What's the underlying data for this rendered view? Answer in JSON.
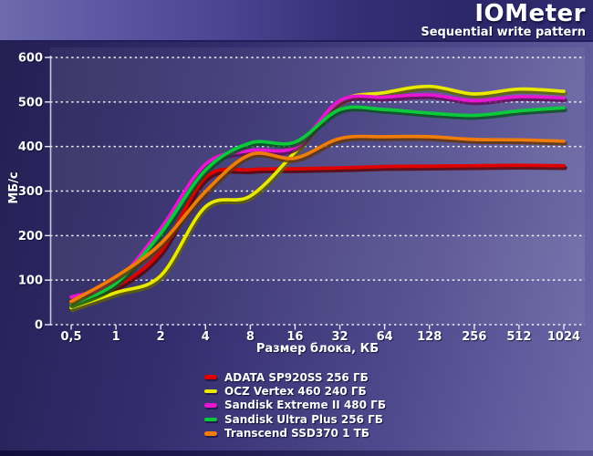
{
  "header": {
    "title": "IOMeter",
    "subtitle": "Sequential write pattern"
  },
  "chart_data": {
    "type": "line",
    "title": "IOMeter",
    "subtitle": "Sequential write pattern",
    "xlabel": "Размер блока, КБ",
    "ylabel": "МБ/с",
    "x_categories": [
      "0,5",
      "1",
      "2",
      "4",
      "8",
      "16",
      "32",
      "64",
      "128",
      "256",
      "512",
      "1024"
    ],
    "y_ticks": [
      "0",
      "100",
      "200",
      "300",
      "400",
      "500",
      "600"
    ],
    "ylim": [
      0,
      600
    ],
    "grid": "horizontal-dotted-white",
    "legend_position": "bottom-left",
    "series": [
      {
        "name": "ADATA SP920SS 256 ГБ",
        "color": "#e00000",
        "values": [
          49,
          85,
          164,
          330,
          348,
          350,
          352,
          355,
          356,
          357,
          358,
          357
        ]
      },
      {
        "name": "OCZ Vertex 460 240 ГБ",
        "color": "#e8e800",
        "values": [
          38,
          72,
          110,
          265,
          289,
          388,
          500,
          521,
          535,
          518,
          529,
          524
        ]
      },
      {
        "name": "Sandisk Extreme II 480 ГБ",
        "color": "#e616d2",
        "values": [
          62,
          98,
          216,
          360,
          391,
          399,
          503,
          511,
          516,
          503,
          512,
          509
        ]
      },
      {
        "name": "Sandisk Ultra Plus 256 ГБ",
        "color": "#0cc83c",
        "values": [
          46,
          93,
          205,
          347,
          408,
          410,
          483,
          483,
          475,
          470,
          480,
          487
        ]
      },
      {
        "name": "Transcend SSD370 1 ТБ",
        "color": "#f07d0a",
        "values": [
          52,
          108,
          182,
          299,
          382,
          374,
          418,
          422,
          422,
          416,
          415,
          412
        ]
      }
    ]
  }
}
